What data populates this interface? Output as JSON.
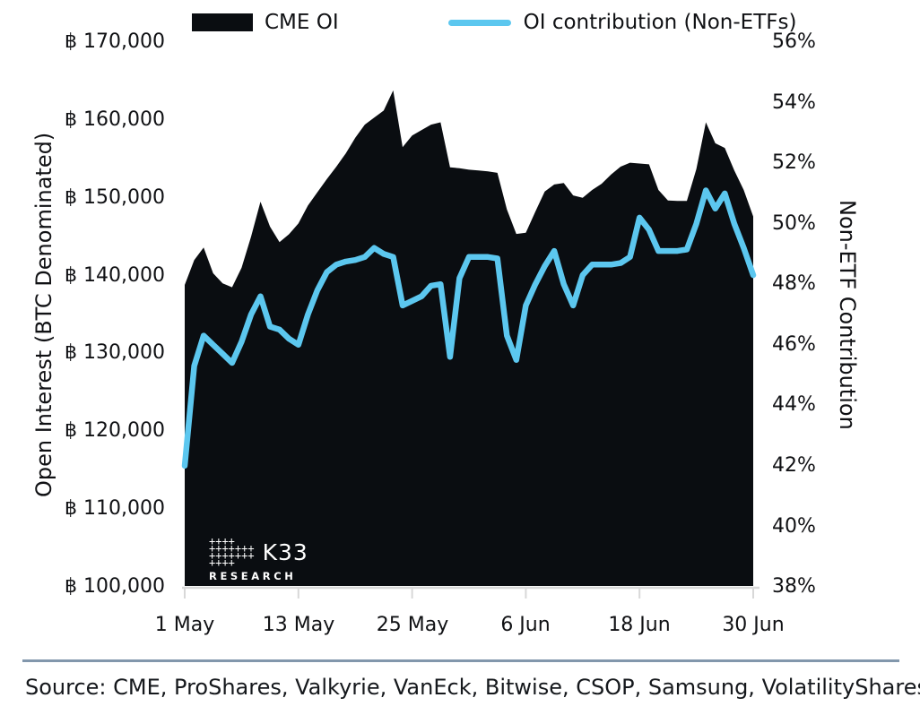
{
  "colors": {
    "area": "#0a0d11",
    "line": "#5cc7ef",
    "baseline": "#d8d8d8",
    "divider": "#8297ac",
    "text": "#101114"
  },
  "logo": {
    "mark_rows": [
      "++++",
      "+++++++",
      "+++++++",
      "++++"
    ],
    "name": "K33",
    "sub": "RESEARCH"
  },
  "source": {
    "text": "Source: CME, ProShares, Valkyrie, VanEck, Bitwise, CSOP, Samsung, VolatilityShares"
  },
  "chart_data": {
    "type": "area+line",
    "legend": [
      {
        "label": "CME OI",
        "type": "area",
        "color": "#0a0d11"
      },
      {
        "label": "OI contribution (Non-ETFs)",
        "type": "line",
        "color": "#5cc7ef"
      }
    ],
    "x_dates": [
      "1 May",
      "2 May",
      "3 May",
      "4 May",
      "5 May",
      "6 May",
      "7 May",
      "8 May",
      "9 May",
      "10 May",
      "11 May",
      "12 May",
      "13 May",
      "14 May",
      "15 May",
      "16 May",
      "17 May",
      "18 May",
      "19 May",
      "20 May",
      "21 May",
      "22 May",
      "23 May",
      "24 May",
      "25 May",
      "26 May",
      "27 May",
      "28 May",
      "29 May",
      "30 May",
      "31 May",
      "1 Jun",
      "2 Jun",
      "3 Jun",
      "4 Jun",
      "5 Jun",
      "6 Jun",
      "7 Jun",
      "8 Jun",
      "9 Jun",
      "10 Jun",
      "11 Jun",
      "12 Jun",
      "13 Jun",
      "14 Jun",
      "15 Jun",
      "16 Jun",
      "17 Jun",
      "18 Jun",
      "19 Jun",
      "20 Jun",
      "21 Jun",
      "22 Jun",
      "23 Jun",
      "24 Jun",
      "25 Jun",
      "26 Jun",
      "27 Jun",
      "28 Jun",
      "29 Jun",
      "30 Jun"
    ],
    "x_ticks": [
      "1 May",
      "13 May",
      "25 May",
      "6 Jun",
      "18 Jun",
      "30 Jun"
    ],
    "y_left": {
      "title": "Open Interest (BTC Denominated)",
      "ticks": [
        "฿ 170,000",
        "฿ 160,000",
        "฿ 150,000",
        "฿ 140,000",
        "฿ 130,000",
        "฿ 120,000",
        "฿ 110,000",
        "฿ 100,000"
      ],
      "range": [
        100000,
        170000
      ],
      "tick_step": 10000
    },
    "y_right": {
      "title": "Non-ETF Contribution",
      "ticks": [
        "56%",
        "54%",
        "52%",
        "50%",
        "48%",
        "46%",
        "44%",
        "42%",
        "40%",
        "38%"
      ],
      "range": [
        38,
        56
      ],
      "tick_step": 2
    },
    "series": [
      {
        "name": "CME OI",
        "axis": "left",
        "type": "area",
        "color": "#0a0d11",
        "values": [
          138800,
          142000,
          143600,
          140300,
          139000,
          138500,
          141000,
          145000,
          149500,
          146300,
          144300,
          145300,
          146700,
          149000,
          150700,
          152400,
          154000,
          155700,
          157700,
          159400,
          160300,
          161200,
          163800,
          156500,
          158000,
          158700,
          159400,
          159700,
          153900,
          153800,
          153600,
          153500,
          153400,
          153200,
          148500,
          145350,
          145500,
          148200,
          150800,
          151700,
          151900,
          150300,
          150000,
          151000,
          151800,
          153000,
          154000,
          154500,
          154400,
          154300,
          151000,
          149650,
          149600,
          149600,
          153700,
          159700,
          157000,
          156400,
          153500,
          151000,
          147600
        ]
      },
      {
        "name": "OI contribution (Non-ETFs)",
        "axis": "right",
        "type": "line",
        "color": "#5cc7ef",
        "values": [
          42.0,
          45.3,
          46.3,
          46.0,
          45.7,
          45.4,
          46.1,
          47.0,
          47.6,
          46.6,
          46.5,
          46.2,
          46.0,
          47.0,
          47.8,
          48.4,
          48.65,
          48.75,
          48.8,
          48.9,
          49.2,
          49.0,
          48.9,
          47.3,
          47.45,
          47.6,
          47.95,
          48.0,
          45.6,
          48.2,
          48.9,
          48.9,
          48.9,
          48.85,
          46.3,
          45.5,
          47.3,
          48.0,
          48.6,
          49.1,
          48.0,
          47.3,
          48.3,
          48.65,
          48.65,
          48.65,
          48.7,
          48.9,
          50.2,
          49.8,
          49.1,
          49.1,
          49.1,
          49.15,
          50.0,
          51.1,
          50.5,
          51.0,
          50.0,
          49.2,
          48.3
        ]
      }
    ]
  }
}
